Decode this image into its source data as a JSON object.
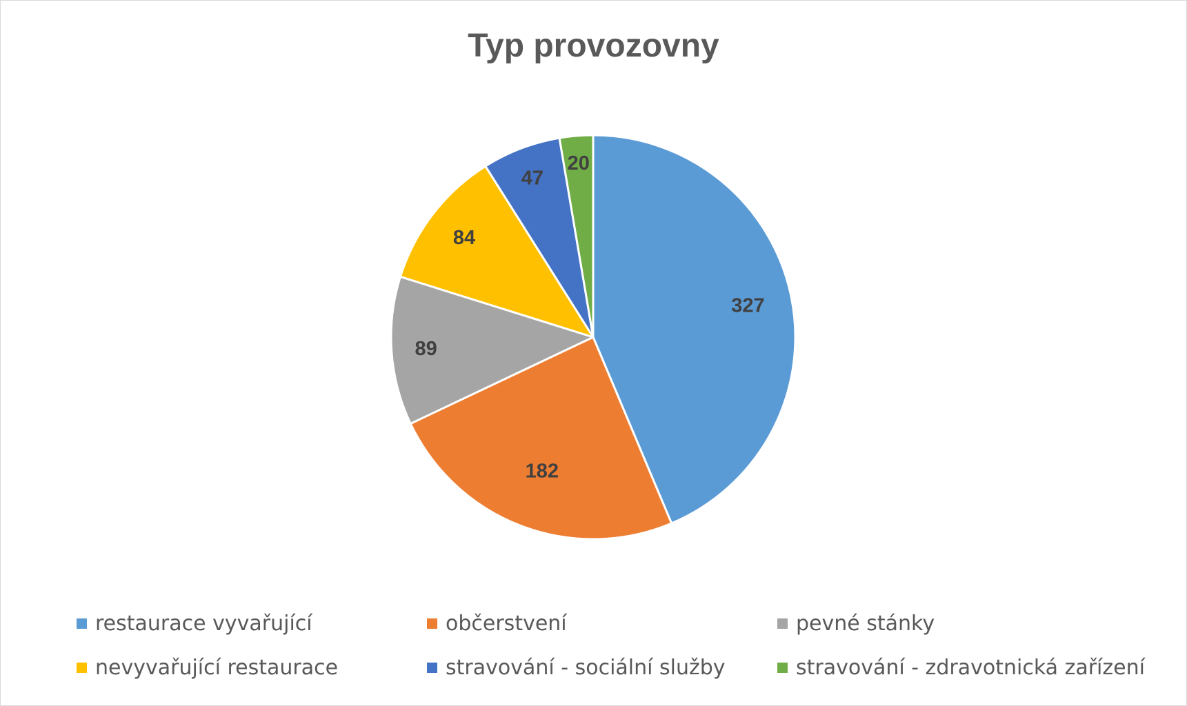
{
  "chart_data": {
    "type": "pie",
    "title": "Typ provozovny",
    "categories": [
      "restaurace vyvařující",
      "občerstvení",
      "pevné stánky",
      "nevyvařující restaurace",
      "stravování - sociální služby",
      "stravování - zdravotnická zařízení"
    ],
    "values": [
      327,
      182,
      89,
      84,
      47,
      20
    ],
    "colors": [
      "#5b9bd5",
      "#ed7d31",
      "#a5a5a5",
      "#ffc000",
      "#4472c4",
      "#70ad47"
    ],
    "data_labels": [
      "327",
      "182",
      "89",
      "84",
      "47",
      "20"
    ],
    "start_angle_deg": 0,
    "direction": "clockwise",
    "legend_position": "bottom"
  }
}
